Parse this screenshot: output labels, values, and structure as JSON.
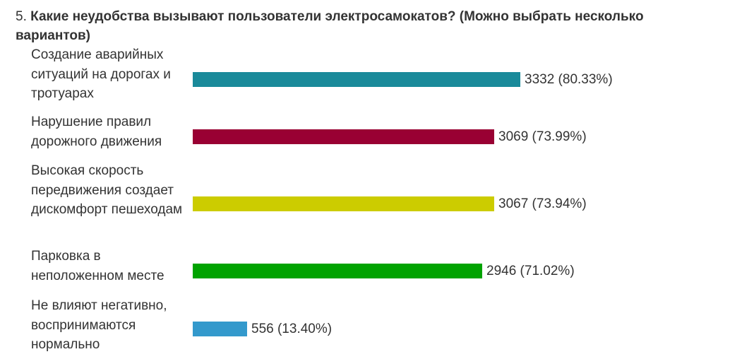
{
  "question": {
    "number": "5.",
    "text": "Какие неудобства вызывают пользователи электросамокатов? (Можно выбрать несколько вариантов)"
  },
  "chart_data": {
    "type": "bar",
    "orientation": "horizontal",
    "categories": [
      "Создание аварийных ситуаций на дорогах и тротуарах",
      "Нарушение правил дорожного движения",
      "Высокая скорость передвижения создает дискомфорт пешеходам",
      "Парковка в неположенном месте",
      "Не влияют негативно, воспринимаются нормально"
    ],
    "values": [
      3332,
      3069,
      3067,
      2946,
      556
    ],
    "percents": [
      80.33,
      73.99,
      73.94,
      71.02,
      13.4
    ],
    "value_labels": [
      "3332 (80.33%)",
      "3069 (73.99%)",
      "3067 (73.94%)",
      "2946 (71.02%)",
      "556 (13.40%)"
    ],
    "colors": [
      "#1a8a9a",
      "#990033",
      "#cccc00",
      "#00a300",
      "#3399cc"
    ],
    "grid": false,
    "legend": "none"
  }
}
